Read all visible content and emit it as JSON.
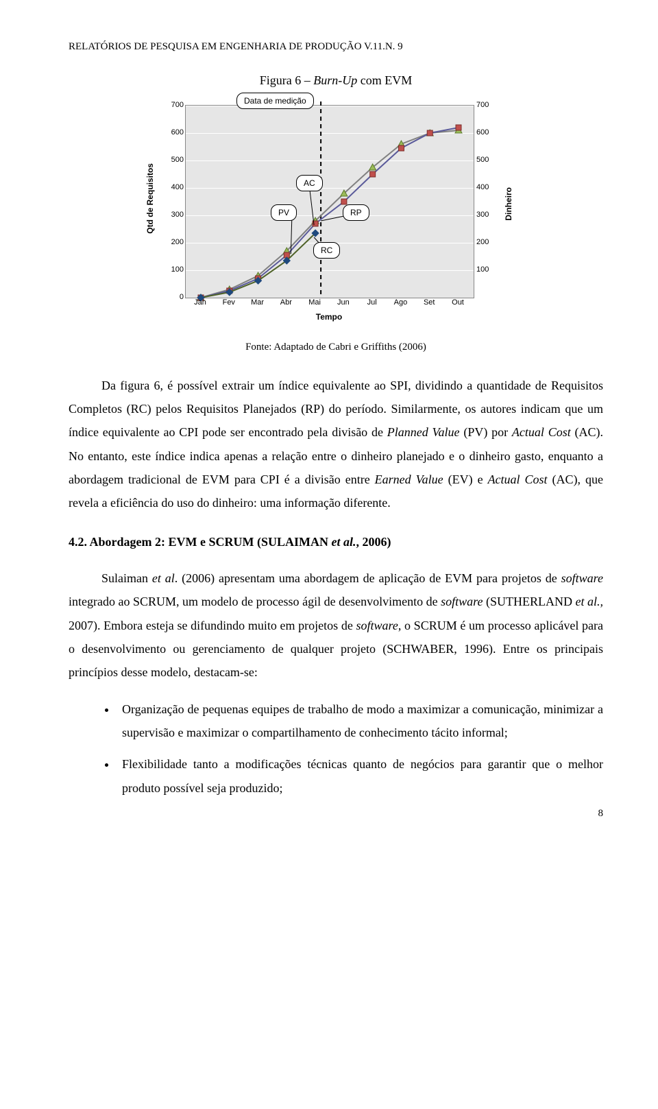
{
  "header": "RELATÓRIOS DE PESQUISA EM ENGENHARIA DE PRODUÇÃO V.11.N. 9",
  "figure": {
    "title_prefix": "Figura 6 – ",
    "title_italic": "Burn-Up",
    "title_suffix": " com EVM",
    "source": "Fonte: Adaptado de Cabri e Griffiths (2006)",
    "chart": {
      "type": "line",
      "background_color": "#e6e6e6",
      "grid_color": "#ffffff",
      "months": [
        "Jan",
        "Fev",
        "Mar",
        "Abr",
        "Mai",
        "Jun",
        "Jul",
        "Ago",
        "Set",
        "Out"
      ],
      "y_left": {
        "min": 0,
        "max": 700,
        "step": 100,
        "label": "Qtd de Requisitos"
      },
      "y_right": {
        "min": 100,
        "max": 700,
        "step": 100,
        "label": "Dinheiro"
      },
      "x_label": "Tempo",
      "series": {
        "AC": {
          "color": "#5a5a9a",
          "marker": "square",
          "marker_fill": "#c0504d",
          "values": [
            0,
            25,
            70,
            155,
            270,
            350,
            450,
            545,
            600,
            620
          ]
        },
        "PV": {
          "color": "#808080",
          "marker": "triangle",
          "marker_fill": "#9bbb59",
          "values": [
            0,
            30,
            80,
            170,
            280,
            380,
            475,
            560,
            600,
            610
          ]
        },
        "RC": {
          "color": "#4f6228",
          "marker": "diamond",
          "marker_fill": "#1f497d",
          "values": [
            0,
            20,
            62,
            135,
            235
          ]
        },
        "RP": {
          "values": [
            0,
            30,
            75,
            170,
            280
          ]
        }
      },
      "measurement_line_index": 4,
      "callouts": {
        "data_label": "Data de medição",
        "AC": "AC",
        "PV": "PV",
        "RP": "RP",
        "RC": "RC"
      },
      "label_fontsize": 12,
      "tick_fontsize": 11
    }
  },
  "para1_a": "Da figura 6, é possível extrair um índice equivalente ao SPI, dividindo a quantidade de Requisitos Completos (RC) pelos Requisitos Planejados (RP) do período. Similarmente, os autores indicam que um índice equivalente ao CPI pode ser encontrado pela divisão de ",
  "para1_i1": "Planned Value",
  "para1_b": " (PV) por ",
  "para1_i2": "Actual Cost",
  "para1_c": " (AC). No entanto, este índice indica apenas a relação entre o dinheiro planejado e o dinheiro gasto, enquanto a abordagem tradicional de EVM para CPI é a divisão entre ",
  "para1_i3": "Earned Value",
  "para1_d": " (EV) e ",
  "para1_i4": "Actual Cost",
  "para1_e": " (AC), que revela a eficiência do uso do dinheiro: uma informação diferente.",
  "sec_title_a": "4.2. Abordagem 2: EVM e SCRUM (SULAIMAN ",
  "sec_title_i": "et al.",
  "sec_title_b": ", 2006)",
  "para2_a": "Sulaiman ",
  "para2_i1": "et al",
  "para2_b": ". (2006) apresentam uma abordagem de aplicação de EVM para projetos de ",
  "para2_i2": "software",
  "para2_c": " integrado ao SCRUM, um modelo de processo ágil de desenvolvimento de ",
  "para2_i3": "software",
  "para2_d": " (SUTHERLAND ",
  "para2_i4": "et al.,",
  "para2_e": " 2007). Embora esteja se difundindo muito em projetos de ",
  "para2_i5": "software",
  "para2_f": ", o SCRUM é um processo aplicável para o desenvolvimento ou gerenciamento de qualquer projeto (SCHWABER, 1996). Entre os principais princípios desse modelo, destacam-se:",
  "bullets": [
    "Organização de pequenas equipes de trabalho de modo a maximizar a comunicação, minimizar a supervisão e maximizar o compartilhamento de conhecimento tácito informal;",
    "Flexibilidade tanto a modificações técnicas quanto de negócios para garantir que o melhor produto possível seja produzido;"
  ],
  "page_number": "8"
}
